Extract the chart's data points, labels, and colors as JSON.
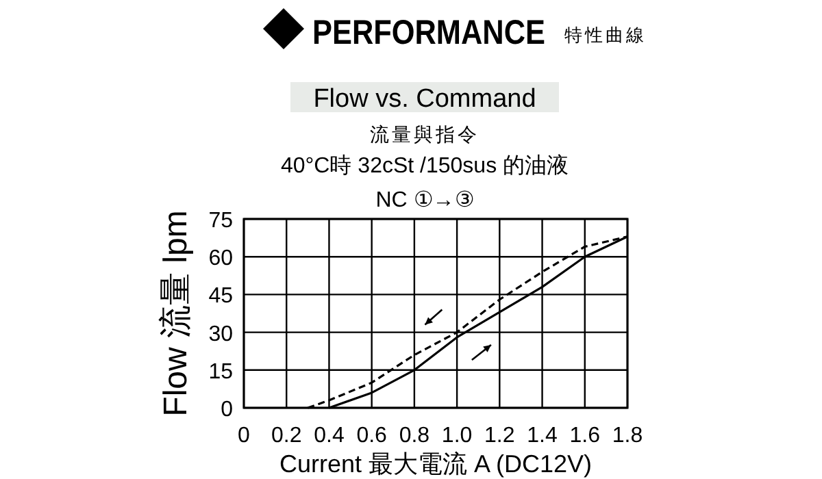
{
  "chart_data": {
    "type": "line",
    "title": "Flow vs. Command",
    "subtitle": "流量與指令",
    "annotations": [
      "PERFORMANCE",
      "特性曲線",
      "40°C時 32cSt /150sus 的油液",
      "NC ①→③"
    ],
    "xlabel": "Current 最大電流 A (DC12V)",
    "ylabel": "Flow 流量 lpm",
    "xlim": [
      0,
      1.8
    ],
    "xticks": [
      0,
      0.2,
      0.4,
      0.6,
      0.8,
      {
        "value": 1,
        "label": "1.0"
      },
      1.2,
      1.4,
      1.6,
      1.8
    ],
    "ylim": [
      0,
      75
    ],
    "yticks": [
      0,
      15,
      30,
      45,
      60,
      75
    ],
    "grid": true,
    "series": [
      {
        "color": "#000000",
        "line_style": "solid",
        "x": [
          0.4,
          0.6,
          0.8,
          1.0,
          1.2,
          1.4,
          1.6,
          1.8
        ],
        "values": [
          0,
          6,
          15,
          28,
          38,
          48,
          60,
          68
        ]
      },
      {
        "color": "#000000",
        "line_style": "dashed",
        "x": [
          0.3,
          0.4,
          0.6,
          0.8,
          1.0,
          1.2,
          1.4,
          1.6,
          1.8
        ],
        "values": [
          0,
          3,
          10,
          21,
          30,
          43,
          54,
          64,
          68
        ]
      }
    ]
  }
}
